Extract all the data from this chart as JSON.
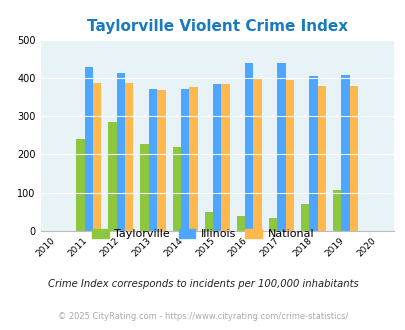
{
  "title": "Taylorville Violent Crime Index",
  "years": [
    2011,
    2012,
    2013,
    2014,
    2015,
    2016,
    2017,
    2018,
    2019
  ],
  "taylorville": [
    240,
    285,
    228,
    220,
    50,
    40,
    35,
    70,
    108
  ],
  "illinois": [
    428,
    414,
    372,
    370,
    383,
    438,
    438,
    405,
    408
  ],
  "national": [
    387,
    387,
    368,
    376,
    383,
    397,
    394,
    380,
    379
  ],
  "colors": {
    "taylorville": "#8dc63f",
    "illinois": "#4da6ff",
    "national": "#ffb84d"
  },
  "bg_color": "#e8f3f8",
  "ylim": [
    0,
    500
  ],
  "yticks": [
    0,
    100,
    200,
    300,
    400,
    500
  ],
  "legend_labels": [
    "Taylorville",
    "Illinois",
    "National"
  ],
  "footnote1": "Crime Index corresponds to incidents per 100,000 inhabitants",
  "footnote2": "© 2025 CityRating.com - https://www.cityrating.com/crime-statistics/",
  "title_color": "#1a7abf",
  "footnote1_color": "#222222",
  "footnote2_color": "#aaaaaa"
}
